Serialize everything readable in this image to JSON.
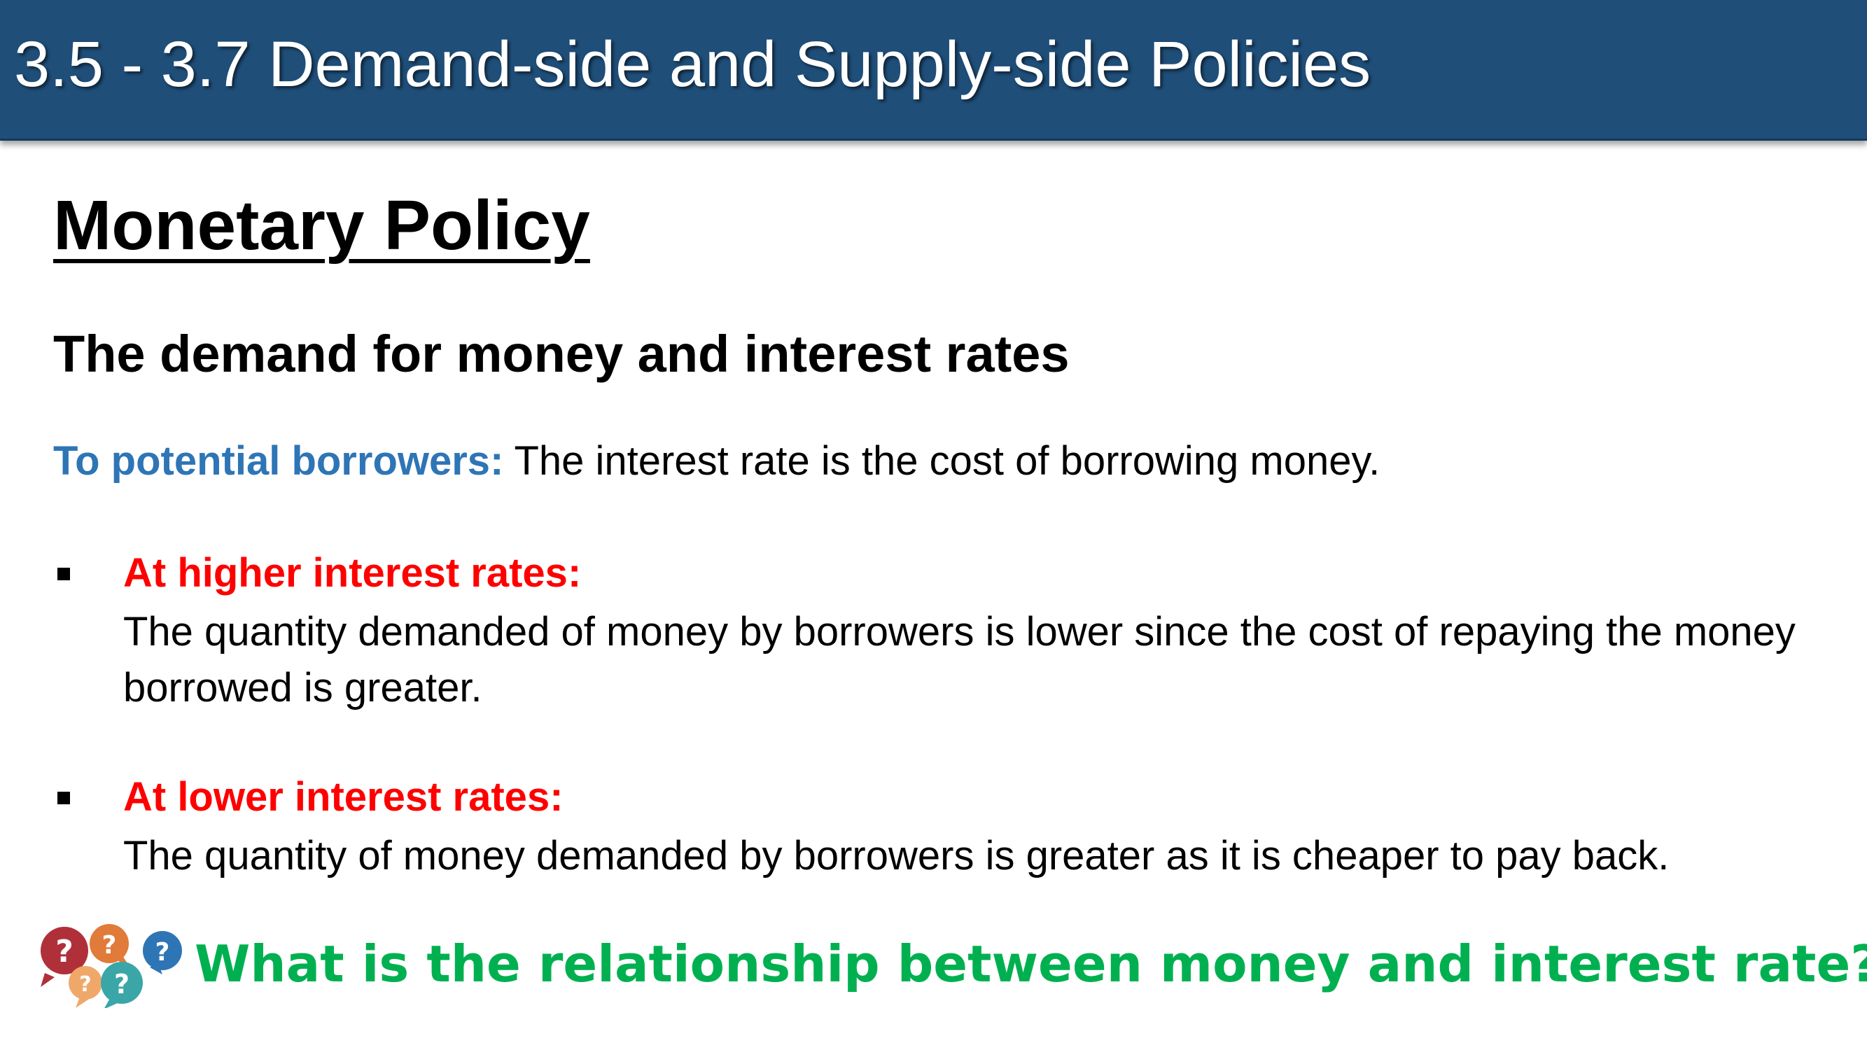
{
  "header": {
    "title": "3.5 - 3.7 Demand-side and Supply-side Policies"
  },
  "section_title": "Monetary Policy",
  "subtitle": "The demand for money and interest rates",
  "intro": {
    "label": "To potential borrowers:",
    "text": " The interest rate is the cost of borrowing money."
  },
  "bullets": [
    {
      "heading": "At higher interest rates:",
      "body": "The quantity demanded of money by borrowers is lower since the cost of repaying the money borrowed is greater."
    },
    {
      "heading": "At lower interest rates:",
      "body": "The quantity of money demanded by borrowers is greater as it is cheaper to pay back."
    }
  ],
  "question": {
    "icon": "question-bubbles-icon",
    "text": "What is the relationship between money and interest rate?"
  },
  "colors": {
    "header_bg": "#1f4e79",
    "intro_label": "#2e75b6",
    "bullet_heading": "#ff0000",
    "question_text": "#00b050"
  }
}
